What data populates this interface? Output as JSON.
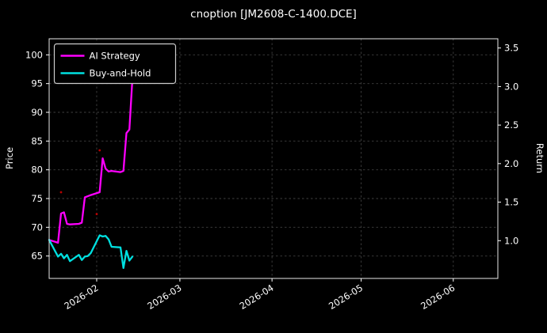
{
  "chart_data": {
    "type": "line",
    "title": "cnoption [JM2608-C-1400.DCE]",
    "ylabel_left": "Price",
    "ylabel_right": "Return",
    "background": "#000000",
    "grid": {
      "on": true,
      "style": "dashed",
      "color": "#3f3f3f"
    },
    "spine_color": "#e8e8e8",
    "xlim": [
      "2026-01-16",
      "2026-06-16"
    ],
    "ylim_left": [
      61.1,
      102.8
    ],
    "ylim_right": [
      0.51,
      3.62
    ],
    "x_ticks": [
      {
        "label": "2026-02",
        "date": "2026-02-01"
      },
      {
        "label": "2026-03",
        "date": "2026-03-01"
      },
      {
        "label": "2026-04",
        "date": "2026-04-01"
      },
      {
        "label": "2026-05",
        "date": "2026-05-01"
      },
      {
        "label": "2026-06",
        "date": "2026-06-01"
      }
    ],
    "y_left_ticks": [
      {
        "label": "65",
        "value": 65
      },
      {
        "label": "70",
        "value": 70
      },
      {
        "label": "75",
        "value": 75
      },
      {
        "label": "80",
        "value": 80
      },
      {
        "label": "85",
        "value": 85
      },
      {
        "label": "90",
        "value": 90
      },
      {
        "label": "95",
        "value": 95
      },
      {
        "label": "100",
        "value": 100
      }
    ],
    "y_right_ticks": [
      {
        "label": "1.0",
        "value": 1.0
      },
      {
        "label": "1.5",
        "value": 1.5
      },
      {
        "label": "2.0",
        "value": 2.0
      },
      {
        "label": "2.5",
        "value": 2.5
      },
      {
        "label": "3.0",
        "value": 3.0
      },
      {
        "label": "3.5",
        "value": 3.5
      }
    ],
    "dates": [
      "2026-01-16",
      "2026-01-19",
      "2026-01-20",
      "2026-01-21",
      "2026-01-22",
      "2026-01-23",
      "2026-01-26",
      "2026-01-27",
      "2026-01-28",
      "2026-01-29",
      "2026-01-30",
      "2026-02-02",
      "2026-02-03",
      "2026-02-04",
      "2026-02-05",
      "2026-02-06",
      "2026-02-09",
      "2026-02-10",
      "2026-02-11",
      "2026-02-12",
      "2026-02-13"
    ],
    "series": [
      {
        "name": "AI Strategy",
        "color": "#ff00ff",
        "values": [
          67.8,
          67.3,
          72.4,
          72.6,
          70.6,
          70.5,
          70.6,
          70.8,
          75.2,
          75.4,
          75.6,
          76.1,
          82.0,
          80.2,
          79.7,
          79.8,
          79.6,
          79.8,
          86.4,
          87.0,
          95.8
        ]
      },
      {
        "name": "Buy-and-Hold",
        "color": "#00e0e0",
        "values": [
          67.8,
          64.9,
          65.4,
          64.6,
          65.2,
          64.1,
          65.2,
          64.3,
          64.9,
          65.0,
          65.5,
          68.6,
          68.4,
          68.5,
          67.9,
          66.6,
          66.5,
          62.9,
          65.9,
          64.2,
          64.9
        ]
      }
    ],
    "markers": [
      {
        "date": "2026-01-20",
        "value": 76.1,
        "color": "#cc0000"
      },
      {
        "date": "2026-02-01",
        "value": 72.3,
        "color": "#cc0000"
      },
      {
        "date": "2026-02-02",
        "value": 83.4,
        "color": "#cc0000"
      }
    ],
    "legend": {
      "position": "upper-left",
      "entries": [
        {
          "label": "AI Strategy",
          "color": "#ff00ff"
        },
        {
          "label": "Buy-and-Hold",
          "color": "#00e0e0"
        }
      ]
    }
  }
}
